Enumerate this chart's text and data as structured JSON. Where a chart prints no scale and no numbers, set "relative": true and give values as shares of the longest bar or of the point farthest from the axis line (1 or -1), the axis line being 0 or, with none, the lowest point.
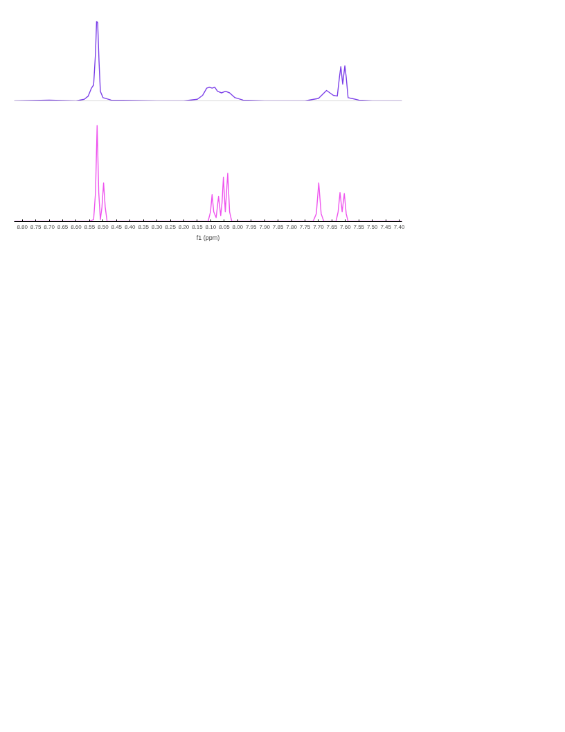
{
  "chart_data": [
    {
      "type": "line",
      "relative": true,
      "xlim": [
        8.83,
        7.39
      ],
      "tick_labels": false,
      "grid": false,
      "series": [
        {
          "color": "#7b3fe8",
          "x": [
            8.83,
            8.7,
            8.6,
            8.57,
            8.555,
            8.543,
            8.535,
            8.528,
            8.524,
            8.52,
            8.515,
            8.51,
            8.5,
            8.47,
            8.3,
            8.2,
            8.15,
            8.13,
            8.115,
            8.105,
            8.095,
            8.085,
            8.075,
            8.06,
            8.045,
            8.03,
            8.01,
            7.98,
            7.9,
            7.75,
            7.7,
            7.67,
            7.645,
            7.63,
            7.622,
            7.617,
            7.61,
            7.602,
            7.597,
            7.59,
            7.55,
            7.5,
            7.39
          ],
          "values": [
            0.0,
            0.01,
            0.0,
            0.02,
            0.06,
            0.16,
            0.2,
            0.6,
            1.0,
            0.98,
            0.5,
            0.12,
            0.04,
            0.01,
            0.0,
            0.0,
            0.02,
            0.07,
            0.16,
            0.17,
            0.16,
            0.17,
            0.12,
            0.1,
            0.12,
            0.1,
            0.04,
            0.01,
            0.0,
            0.0,
            0.03,
            0.13,
            0.07,
            0.06,
            0.3,
            0.43,
            0.21,
            0.44,
            0.3,
            0.04,
            0.01,
            0.0,
            0.0
          ]
        }
      ]
    },
    {
      "type": "line",
      "relative": true,
      "xlim": [
        8.83,
        7.39
      ],
      "tick_labels": "x",
      "grid": false,
      "xlabel": "f1 (ppm)",
      "xticks": [
        {
          "value": 8.8,
          "label": "8.80"
        },
        {
          "value": 8.75,
          "label": "8.75"
        },
        {
          "value": 8.7,
          "label": "8.70"
        },
        {
          "value": 8.65,
          "label": "8.65"
        },
        {
          "value": 8.6,
          "label": "8.60"
        },
        {
          "value": 8.55,
          "label": "8.55"
        },
        {
          "value": 8.5,
          "label": "8.50"
        },
        {
          "value": 8.45,
          "label": "8.45"
        },
        {
          "value": 8.4,
          "label": "8.40"
        },
        {
          "value": 8.35,
          "label": "8.35"
        },
        {
          "value": 8.3,
          "label": "8.30"
        },
        {
          "value": 8.25,
          "label": "8.25"
        },
        {
          "value": 8.2,
          "label": "8.20"
        },
        {
          "value": 8.15,
          "label": "8.15"
        },
        {
          "value": 8.1,
          "label": "8.10"
        },
        {
          "value": 8.05,
          "label": "8.05"
        },
        {
          "value": 8.0,
          "label": "8.00"
        },
        {
          "value": 7.95,
          "label": "7.95"
        },
        {
          "value": 7.9,
          "label": "7.90"
        },
        {
          "value": 7.85,
          "label": "7.85"
        },
        {
          "value": 7.8,
          "label": "7.80"
        },
        {
          "value": 7.75,
          "label": "7.75"
        },
        {
          "value": 7.7,
          "label": "7.70"
        },
        {
          "value": 7.65,
          "label": "7.65"
        },
        {
          "value": 7.6,
          "label": "7.60"
        },
        {
          "value": 7.55,
          "label": "7.55"
        },
        {
          "value": 7.5,
          "label": "7.50"
        },
        {
          "value": 7.45,
          "label": "7.45"
        },
        {
          "value": 7.4,
          "label": "7.40"
        }
      ],
      "series": [
        {
          "color": "#ee55ee",
          "x": [
            8.83,
            8.55,
            8.535,
            8.528,
            8.522,
            8.516,
            8.51,
            8.504,
            8.498,
            8.492,
            8.485,
            8.11,
            8.101,
            8.095,
            8.089,
            8.08,
            8.071,
            8.063,
            8.058,
            8.053,
            8.046,
            8.037,
            8.03,
            8.022,
            7.72,
            7.708,
            7.699,
            7.69,
            7.68,
            7.635,
            7.627,
            7.62,
            7.612,
            7.604,
            7.597,
            7.59,
            7.39
          ],
          "values": [
            0,
            0,
            0.02,
            0.3,
            1.0,
            0.3,
            0.02,
            0.15,
            0.4,
            0.15,
            0.0,
            0,
            0.1,
            0.28,
            0.1,
            0.04,
            0.26,
            0.06,
            0.2,
            0.46,
            0.1,
            0.5,
            0.1,
            0,
            0,
            0.08,
            0.4,
            0.08,
            0,
            0,
            0.1,
            0.3,
            0.1,
            0.29,
            0.08,
            0,
            0
          ]
        }
      ]
    }
  ]
}
